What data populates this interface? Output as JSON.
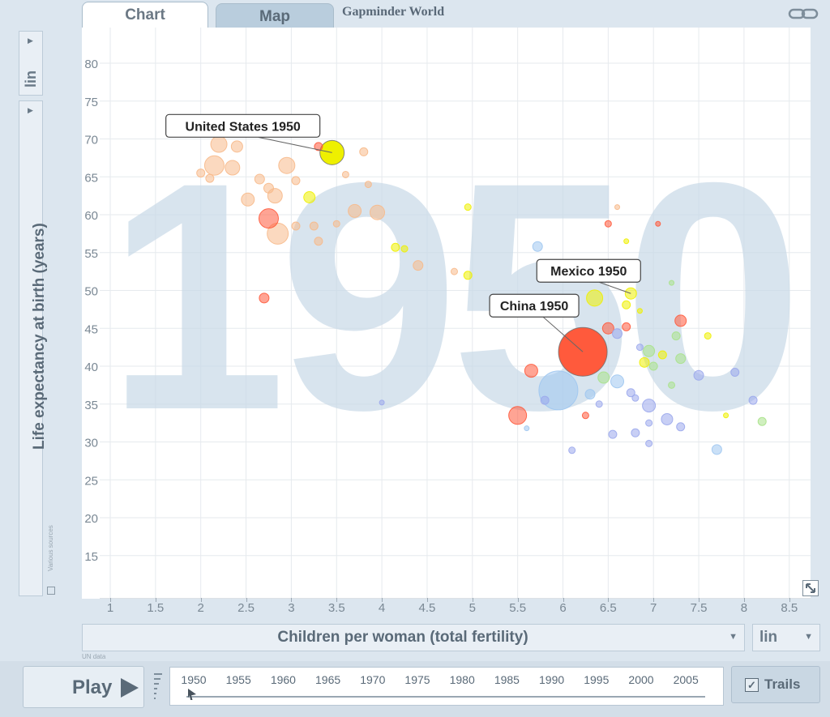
{
  "tabs": [
    {
      "label": "Chart",
      "active": true
    },
    {
      "label": "Map",
      "active": false
    }
  ],
  "brand": "Gapminder World",
  "y_scale": "lin",
  "x_scale": "lin",
  "sources_note": "Various sources",
  "x_sources_note": "UN data",
  "play_label": "Play",
  "trails_label": "Trails",
  "trails_checked": true,
  "timeline": {
    "years": [
      "1950",
      "1955",
      "1960",
      "1965",
      "1970",
      "1975",
      "1980",
      "1985",
      "1990",
      "1995",
      "2000",
      "2005"
    ],
    "current": "1950"
  },
  "chart_data": {
    "type": "scatter",
    "title": "",
    "watermark": "1950",
    "xlabel": "Children per woman (total fertility)",
    "ylabel": "Life expectancy at birth (years)",
    "xlim": [
      0.9,
      9.0
    ],
    "ylim": [
      10,
      85
    ],
    "xticks": [
      "1",
      "1.5",
      "2",
      "2.5",
      "3",
      "3.5",
      "4",
      "4.5",
      "5",
      "5.5",
      "6",
      "6.5",
      "7",
      "7.5",
      "8",
      "8.5"
    ],
    "yticks": [
      "15",
      "20",
      "25",
      "30",
      "35",
      "40",
      "45",
      "50",
      "55",
      "60",
      "65",
      "70",
      "75",
      "80"
    ],
    "grid": true,
    "labels": [
      {
        "text": "United States 1950",
        "x": 3.45,
        "y": 68.2
      },
      {
        "text": "Mexico 1950",
        "x": 6.75,
        "y": 49.6
      },
      {
        "text": "China 1950",
        "x": 6.22,
        "y": 41.9
      }
    ],
    "colors": {
      "yellow": "#eef000",
      "red": "#ff5a3c",
      "orange": "#f7b98a",
      "blue": "#9ec6f0",
      "green": "#a9e28a",
      "purple": "#9ba8ec"
    },
    "points": [
      {
        "x": 3.45,
        "y": 68.2,
        "size": 15,
        "color": "yellow"
      },
      {
        "x": 6.75,
        "y": 49.6,
        "size": 7,
        "color": "yellow"
      },
      {
        "x": 6.22,
        "y": 41.9,
        "size": 30,
        "color": "red"
      },
      {
        "x": 5.95,
        "y": 36.8,
        "size": 24,
        "color": "blue"
      },
      {
        "x": 2.2,
        "y": 69.3,
        "size": 10,
        "color": "orange"
      },
      {
        "x": 2.4,
        "y": 69.0,
        "size": 7,
        "color": "orange"
      },
      {
        "x": 2.15,
        "y": 66.5,
        "size": 12,
        "color": "orange"
      },
      {
        "x": 2.35,
        "y": 66.2,
        "size": 9,
        "color": "orange"
      },
      {
        "x": 2.0,
        "y": 65.5,
        "size": 5,
        "color": "orange"
      },
      {
        "x": 2.1,
        "y": 64.8,
        "size": 5,
        "color": "orange"
      },
      {
        "x": 2.65,
        "y": 64.7,
        "size": 6,
        "color": "orange"
      },
      {
        "x": 2.75,
        "y": 63.5,
        "size": 6,
        "color": "orange"
      },
      {
        "x": 2.82,
        "y": 62.5,
        "size": 9,
        "color": "orange"
      },
      {
        "x": 2.52,
        "y": 62.0,
        "size": 8,
        "color": "orange"
      },
      {
        "x": 2.95,
        "y": 66.5,
        "size": 10,
        "color": "orange"
      },
      {
        "x": 3.05,
        "y": 64.5,
        "size": 5,
        "color": "orange"
      },
      {
        "x": 3.3,
        "y": 69.0,
        "size": 5,
        "color": "red"
      },
      {
        "x": 3.8,
        "y": 68.3,
        "size": 5,
        "color": "orange"
      },
      {
        "x": 3.6,
        "y": 65.3,
        "size": 4,
        "color": "orange"
      },
      {
        "x": 3.2,
        "y": 62.3,
        "size": 7,
        "color": "yellow"
      },
      {
        "x": 3.85,
        "y": 64.0,
        "size": 4,
        "color": "orange"
      },
      {
        "x": 2.75,
        "y": 59.5,
        "size": 12,
        "color": "red"
      },
      {
        "x": 2.85,
        "y": 57.5,
        "size": 13,
        "color": "orange"
      },
      {
        "x": 3.25,
        "y": 58.5,
        "size": 5,
        "color": "orange"
      },
      {
        "x": 3.3,
        "y": 56.5,
        "size": 5,
        "color": "orange"
      },
      {
        "x": 3.7,
        "y": 60.5,
        "size": 8,
        "color": "orange"
      },
      {
        "x": 3.95,
        "y": 60.3,
        "size": 9,
        "color": "orange"
      },
      {
        "x": 3.5,
        "y": 58.8,
        "size": 4,
        "color": "orange"
      },
      {
        "x": 3.05,
        "y": 58.5,
        "size": 5,
        "color": "orange"
      },
      {
        "x": 4.15,
        "y": 55.7,
        "size": 5,
        "color": "yellow"
      },
      {
        "x": 4.25,
        "y": 55.5,
        "size": 4,
        "color": "yellow"
      },
      {
        "x": 4.4,
        "y": 53.3,
        "size": 6,
        "color": "orange"
      },
      {
        "x": 2.7,
        "y": 49.0,
        "size": 6,
        "color": "red"
      },
      {
        "x": 4.95,
        "y": 61.0,
        "size": 4,
        "color": "yellow"
      },
      {
        "x": 4.8,
        "y": 52.5,
        "size": 4,
        "color": "orange"
      },
      {
        "x": 4.95,
        "y": 52.0,
        "size": 5,
        "color": "yellow"
      },
      {
        "x": 5.72,
        "y": 55.8,
        "size": 6,
        "color": "blue"
      },
      {
        "x": 6.35,
        "y": 49.0,
        "size": 10,
        "color": "yellow"
      },
      {
        "x": 6.5,
        "y": 45.0,
        "size": 7,
        "color": "red"
      },
      {
        "x": 6.7,
        "y": 45.2,
        "size": 5,
        "color": "red"
      },
      {
        "x": 6.6,
        "y": 44.3,
        "size": 6,
        "color": "purple"
      },
      {
        "x": 7.3,
        "y": 46.0,
        "size": 7,
        "color": "red"
      },
      {
        "x": 6.7,
        "y": 48.1,
        "size": 5,
        "color": "yellow"
      },
      {
        "x": 7.25,
        "y": 44.0,
        "size": 5,
        "color": "green"
      },
      {
        "x": 6.95,
        "y": 42.0,
        "size": 7,
        "color": "green"
      },
      {
        "x": 7.1,
        "y": 41.5,
        "size": 5,
        "color": "yellow"
      },
      {
        "x": 7.3,
        "y": 41.0,
        "size": 6,
        "color": "green"
      },
      {
        "x": 6.9,
        "y": 40.5,
        "size": 6,
        "color": "yellow"
      },
      {
        "x": 7.0,
        "y": 40.0,
        "size": 5,
        "color": "green"
      },
      {
        "x": 7.6,
        "y": 44.0,
        "size": 4,
        "color": "yellow"
      },
      {
        "x": 6.45,
        "y": 38.5,
        "size": 7,
        "color": "green"
      },
      {
        "x": 6.6,
        "y": 38.0,
        "size": 8,
        "color": "blue"
      },
      {
        "x": 6.75,
        "y": 36.5,
        "size": 5,
        "color": "purple"
      },
      {
        "x": 7.5,
        "y": 38.8,
        "size": 6,
        "color": "purple"
      },
      {
        "x": 7.9,
        "y": 39.2,
        "size": 5,
        "color": "purple"
      },
      {
        "x": 7.2,
        "y": 37.5,
        "size": 4,
        "color": "green"
      },
      {
        "x": 6.8,
        "y": 35.8,
        "size": 4,
        "color": "purple"
      },
      {
        "x": 6.95,
        "y": 34.8,
        "size": 8,
        "color": "purple"
      },
      {
        "x": 7.15,
        "y": 33.0,
        "size": 7,
        "color": "purple"
      },
      {
        "x": 6.95,
        "y": 32.5,
        "size": 4,
        "color": "purple"
      },
      {
        "x": 7.3,
        "y": 32.0,
        "size": 5,
        "color": "purple"
      },
      {
        "x": 6.8,
        "y": 31.2,
        "size": 5,
        "color": "purple"
      },
      {
        "x": 6.55,
        "y": 31.0,
        "size": 5,
        "color": "purple"
      },
      {
        "x": 6.95,
        "y": 29.8,
        "size": 4,
        "color": "purple"
      },
      {
        "x": 6.1,
        "y": 28.9,
        "size": 4,
        "color": "purple"
      },
      {
        "x": 7.7,
        "y": 29.0,
        "size": 6,
        "color": "blue"
      },
      {
        "x": 8.1,
        "y": 35.5,
        "size": 5,
        "color": "purple"
      },
      {
        "x": 8.2,
        "y": 32.7,
        "size": 5,
        "color": "green"
      },
      {
        "x": 7.8,
        "y": 33.5,
        "size": 3,
        "color": "yellow"
      },
      {
        "x": 5.65,
        "y": 39.4,
        "size": 8,
        "color": "red"
      },
      {
        "x": 5.5,
        "y": 33.5,
        "size": 11,
        "color": "red"
      },
      {
        "x": 5.6,
        "y": 31.8,
        "size": 3,
        "color": "blue"
      },
      {
        "x": 6.25,
        "y": 33.5,
        "size": 4,
        "color": "red"
      },
      {
        "x": 6.3,
        "y": 36.3,
        "size": 6,
        "color": "blue"
      },
      {
        "x": 5.8,
        "y": 35.5,
        "size": 5,
        "color": "purple"
      },
      {
        "x": 4.0,
        "y": 35.2,
        "size": 3,
        "color": "purple"
      },
      {
        "x": 6.85,
        "y": 42.5,
        "size": 4,
        "color": "purple"
      },
      {
        "x": 6.4,
        "y": 35.0,
        "size": 4,
        "color": "purple"
      },
      {
        "x": 6.5,
        "y": 58.8,
        "size": 4,
        "color": "red"
      },
      {
        "x": 7.05,
        "y": 58.8,
        "size": 3,
        "color": "red"
      },
      {
        "x": 6.6,
        "y": 61.0,
        "size": 3,
        "color": "orange"
      },
      {
        "x": 6.7,
        "y": 56.5,
        "size": 3,
        "color": "yellow"
      },
      {
        "x": 7.2,
        "y": 51.0,
        "size": 3,
        "color": "green"
      },
      {
        "x": 6.85,
        "y": 47.3,
        "size": 3,
        "color": "yellow"
      }
    ]
  }
}
